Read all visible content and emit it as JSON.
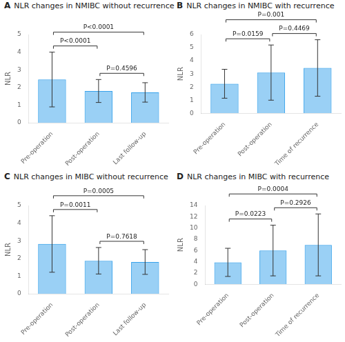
{
  "chart_data": [
    {
      "type": "bar",
      "panel": "A",
      "title": "NLR changes in NMIBC without recurrence",
      "categories": [
        "Pre-operation",
        "Post-operation",
        "Last follow-up"
      ],
      "values": [
        2.45,
        1.8,
        1.72
      ],
      "errors": [
        1.55,
        0.65,
        0.55
      ],
      "ylim": [
        0,
        5
      ],
      "yticks": [
        0,
        1,
        2,
        3,
        4,
        5
      ],
      "ylabel": "NLR",
      "grid": false,
      "annotations": [
        {
          "text": "P<0.0001",
          "between": [
            "Pre-operation",
            "Last follow-up"
          ]
        },
        {
          "text": "P<0.0001",
          "between": [
            "Pre-operation",
            "Post-operation"
          ]
        },
        {
          "text": "P=0.4596",
          "between": [
            "Post-operation",
            "Last follow-up"
          ]
        }
      ]
    },
    {
      "type": "bar",
      "panel": "B",
      "title": "NLR changes in NMIBC with recurrence",
      "categories": [
        "Pre-operation",
        "Post-operation",
        "Time of recurrence"
      ],
      "values": [
        2.25,
        3.1,
        3.45
      ],
      "errors": [
        1.1,
        2.1,
        2.15
      ],
      "ylim": [
        0,
        6
      ],
      "yticks": [
        0,
        1,
        2,
        3,
        4,
        5,
        6
      ],
      "ylabel": "NLR",
      "grid": false,
      "annotations": [
        {
          "text": "P=0.001",
          "between": [
            "Pre-operation",
            "Time of recurrence"
          ]
        },
        {
          "text": "P=0.0159",
          "between": [
            "Pre-operation",
            "Post-operation"
          ]
        },
        {
          "text": "P=0.4469",
          "between": [
            "Post-operation",
            "Time of recurrence"
          ]
        }
      ]
    },
    {
      "type": "bar",
      "panel": "C",
      "title": "NLR changes in MIBC without recurrence",
      "categories": [
        "Pre-operation",
        "Post-operation",
        "Last follow-up"
      ],
      "values": [
        2.82,
        1.87,
        1.8
      ],
      "errors": [
        1.6,
        0.75,
        0.7
      ],
      "ylim": [
        0,
        5
      ],
      "yticks": [
        0,
        1,
        2,
        3,
        4,
        5
      ],
      "ylabel": "NLR",
      "grid": false,
      "annotations": [
        {
          "text": "P=0.0005",
          "between": [
            "Pre-operation",
            "Last follow-up"
          ]
        },
        {
          "text": "P=0.0011",
          "between": [
            "Pre-operation",
            "Post-operation"
          ]
        },
        {
          "text": "P=0.7618",
          "between": [
            "Post-operation",
            "Last follow-up"
          ]
        }
      ]
    },
    {
      "type": "bar",
      "panel": "D",
      "title": "NLR changes in MIBC with recurrence",
      "categories": [
        "Pre-operation",
        "Post-operation",
        "Time of recurrence"
      ],
      "values": [
        3.9,
        6.0,
        7.0
      ],
      "errors": [
        2.5,
        4.5,
        5.5
      ],
      "ylim": [
        0,
        14
      ],
      "yticks": [
        0,
        2,
        4,
        6,
        8,
        10,
        12,
        14
      ],
      "ylabel": "NLR",
      "grid": false,
      "annotations": [
        {
          "text": "P=0.0004",
          "between": [
            "Pre-operation",
            "Time of recurrence"
          ]
        },
        {
          "text": "P=0.0223",
          "between": [
            "Pre-operation",
            "Post-operation"
          ]
        },
        {
          "text": "P=0.2926",
          "between": [
            "Post-operation",
            "Time of recurrence"
          ]
        }
      ]
    }
  ]
}
